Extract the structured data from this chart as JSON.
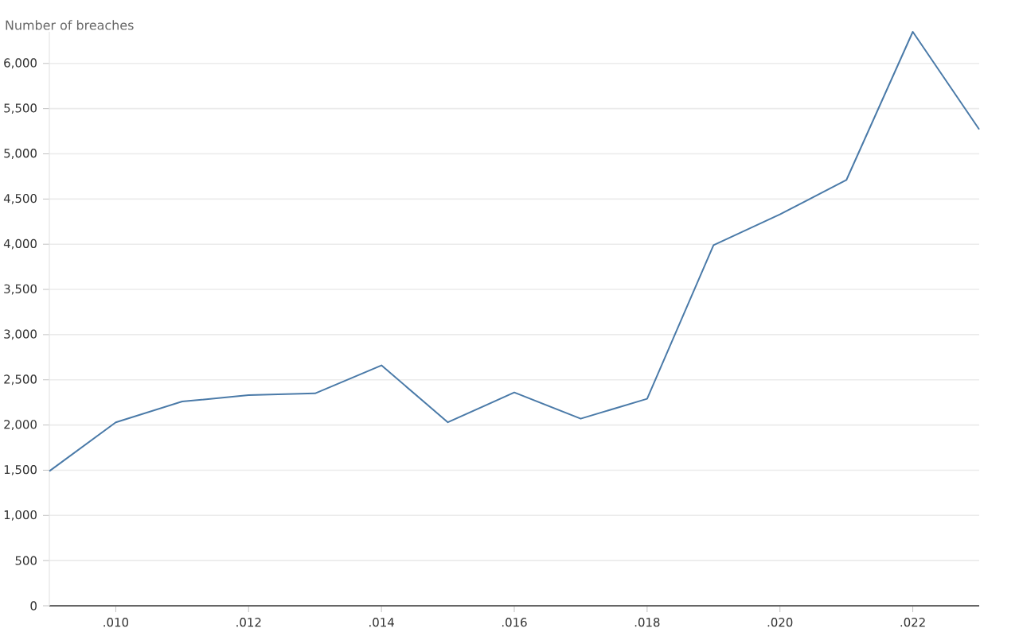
{
  "chart_data": {
    "type": "line",
    "ylabel": "Number of breaches",
    "categories": [
      null,
      ".010",
      null,
      ".012",
      null,
      ".014",
      null,
      ".016",
      null,
      ".018",
      null,
      ".020",
      null,
      ".022",
      null
    ],
    "series": [
      {
        "color": "#4a7aa8",
        "values": [
          1490,
          2030,
          2260,
          2330,
          2350,
          2660,
          2030,
          2360,
          2070,
          2290,
          3990,
          4330,
          4710,
          6350,
          5270
        ]
      }
    ],
    "ylim": [
      0,
      6350
    ],
    "yticks": [
      {
        "value": 0,
        "label": "0"
      },
      {
        "value": 500,
        "label": "500"
      },
      {
        "value": 1000,
        "label": "1,000"
      },
      {
        "value": 1500,
        "label": "1,500"
      },
      {
        "value": 2000,
        "label": "2,000"
      },
      {
        "value": 2500,
        "label": "2,500"
      },
      {
        "value": 3000,
        "label": "3,000"
      },
      {
        "value": 3500,
        "label": "3,500"
      },
      {
        "value": 4000,
        "label": "4,000"
      },
      {
        "value": 4500,
        "label": "4,500"
      },
      {
        "value": 5000,
        "label": "5,000"
      },
      {
        "value": 5500,
        "label": "5,500"
      },
      {
        "value": 6000,
        "label": "6,000"
      }
    ],
    "grid": "y",
    "marker": "none",
    "line_style": "solid"
  }
}
